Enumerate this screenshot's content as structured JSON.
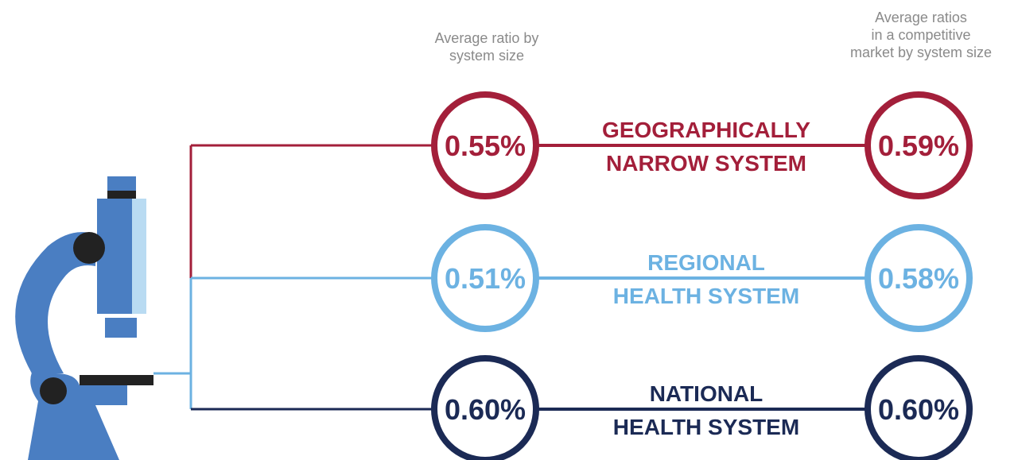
{
  "headers": {
    "left": [
      "Average ratio by",
      "system size"
    ],
    "right": [
      "Average ratios",
      "in a competitive",
      "market by system size"
    ]
  },
  "rows": [
    {
      "label": [
        "GEOGRAPHICALLY",
        "NARROW SYSTEM"
      ],
      "ratio": "0.55%",
      "competitive_ratio": "0.59%",
      "color": "#a31f3a"
    },
    {
      "label": [
        "REGIONAL",
        "HEALTH SYSTEM"
      ],
      "ratio": "0.51%",
      "competitive_ratio": "0.58%",
      "color": "#6cb2e2"
    },
    {
      "label": [
        "NATIONAL",
        "HEALTH SYSTEM"
      ],
      "ratio": "0.60%",
      "competitive_ratio": "0.60%",
      "color": "#1b2a55"
    }
  ]
}
